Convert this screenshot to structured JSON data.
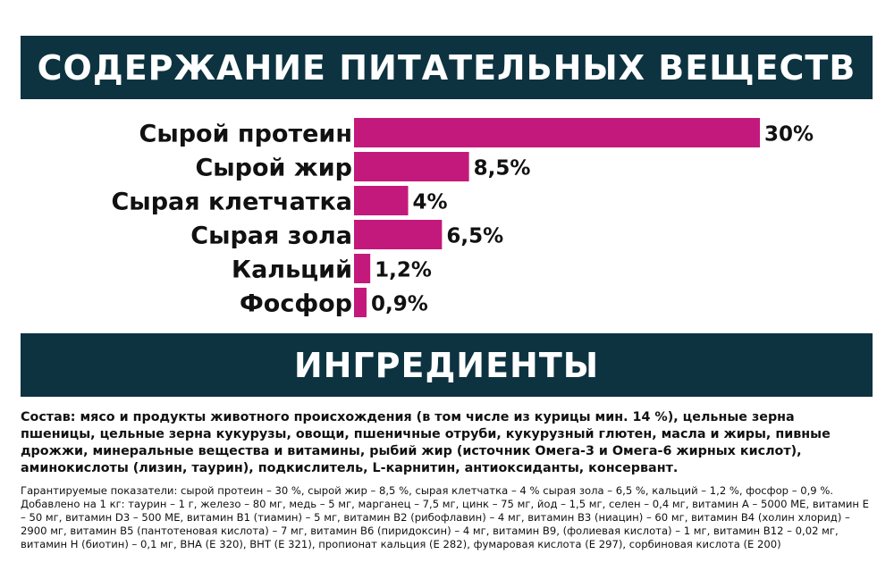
{
  "header": {
    "title": "СОДЕРЖАНИЕ ПИТАТЕЛЬНЫХ ВЕЩЕСТВ"
  },
  "colors": {
    "banner": "#0d3341",
    "bar": "#c4197c"
  },
  "chart_data": {
    "type": "bar",
    "orientation": "horizontal",
    "categories": [
      "Сырой протеин",
      "Сырой жир",
      "Сырая клетчатка",
      "Сырая зола",
      "Кальций",
      "Фосфор"
    ],
    "values": [
      30,
      8.5,
      4,
      6.5,
      1.2,
      0.9
    ],
    "value_labels": [
      "30%",
      "8,5%",
      "4%",
      "6,5%",
      "1,2%",
      "0,9%"
    ],
    "unit": "%",
    "title": "",
    "xlabel": "",
    "ylabel": "",
    "xlim": [
      0,
      30
    ],
    "grid": false,
    "legend": "none"
  },
  "ingredients": {
    "title": "ИНГРЕДИЕНТЫ",
    "composition": "Состав: мясо и продукты животного происхождения (в том числе из курицы мин. 14 %), цельные зерна пшеницы, цельные зерна кукурузы, овощи, пшеничные отруби, кукурузный глютен, масла и жиры, пивные дрожжи, минеральные вещества и витамины, рыбий жир (источник Омега-3 и Омега-6 жирных кислот), аминокислоты (лизин, таурин), подкислитель, L-карнитин, антиоксиданты, консервант.",
    "guarantee": "Гарантируемые показатели: сырой протеин – 30 %, сырой жир – 8,5 %, сырая клетчатка – 4 % сырая зола – 6,5 %, кальций – 1,2 %, фосфор – 0,9 %. Добавлено на 1 кг: таурин – 1 г, железо – 80 мг, медь – 5 мг, марганец – 7,5 мг, цинк – 75 мг, йод – 1,5 мг, селен – 0,4 мг, витамин А – 5000 МЕ, витамин Е – 50 мг, витамин D3 – 500 МЕ, витамин В1 (тиамин) – 5 мг, витамин В2 (рибофлавин) – 4 мг, витамин В3 (ниацин) – 60 мг, витамин В4 (холин хлорид) – 2900 мг, витамин В5 (пантотеновая кислота) – 7 мг, витамин В6 (пиридоксин) – 4 мг, витамин В9, (фолиевая кислота) – 1 мг, витамин В12 – 0,02 мг, витамин Н (биотин) – 0,1 мг, ВНА (Е 320), ВНТ (Е 321), пропионат кальция (Е 282), фумаровая кислота (Е 297), сорбиновая кислота (Е 200)"
  }
}
